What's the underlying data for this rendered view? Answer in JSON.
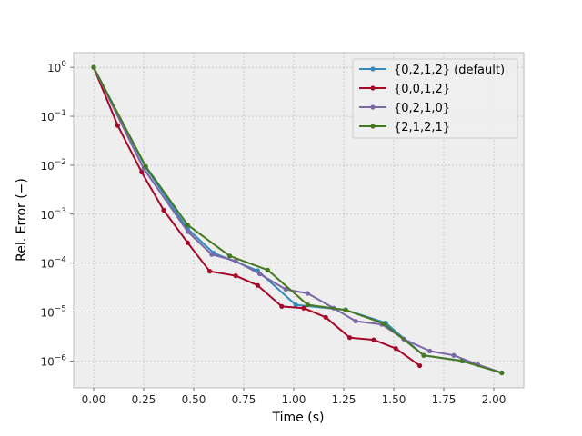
{
  "chart_data": {
    "type": "line",
    "title": "",
    "xlabel": "Time (s)",
    "ylabel": "Rel. Error (−)",
    "xlim": [
      -0.1,
      2.15
    ],
    "ylim_log10": [
      -6.55,
      0.3
    ],
    "y_scale": "log",
    "grid": true,
    "legend_position": "top-right",
    "x_ticks": [
      0.0,
      0.25,
      0.5,
      0.75,
      1.0,
      1.25,
      1.5,
      1.75,
      2.0
    ],
    "x_tick_labels": [
      "0.00",
      "0.25",
      "0.50",
      "0.75",
      "1.00",
      "1.25",
      "1.50",
      "1.75",
      "2.00"
    ],
    "y_ticks": [
      {
        "base": "10",
        "exp": "0",
        "value": 1
      },
      {
        "base": "10",
        "exp": "−1",
        "value": 0.1
      },
      {
        "base": "10",
        "exp": "−2",
        "value": 0.01
      },
      {
        "base": "10",
        "exp": "−3",
        "value": 0.001
      },
      {
        "base": "10",
        "exp": "−4",
        "value": 0.0001
      },
      {
        "base": "10",
        "exp": "−5",
        "value": 1e-05
      },
      {
        "base": "10",
        "exp": "−6",
        "value": 1e-06
      }
    ],
    "series": [
      {
        "name": "{0,2,1,2} (default)",
        "color": "#348abd",
        "points": [
          [
            0.0,
            1.0
          ],
          [
            0.26,
            0.009
          ],
          [
            0.47,
            0.0005
          ],
          [
            0.6,
            0.00016
          ],
          [
            0.82,
            7e-05
          ],
          [
            1.01,
            1.4e-05
          ],
          [
            1.26,
            1.1e-05
          ],
          [
            1.46,
            6e-06
          ],
          [
            1.65,
            1.3e-06
          ],
          [
            1.85,
            1e-06
          ],
          [
            1.92,
            8.4e-07
          ],
          [
            2.04,
            5.7e-07
          ]
        ]
      },
      {
        "name": "{0,0,1,2}",
        "color": "#a60628",
        "points": [
          [
            0.0,
            1.0
          ],
          [
            0.12,
            0.065
          ],
          [
            0.24,
            0.0072
          ],
          [
            0.35,
            0.0012
          ],
          [
            0.47,
            0.00026
          ],
          [
            0.58,
            6.8e-05
          ],
          [
            0.71,
            5.5e-05
          ],
          [
            0.82,
            3.5e-05
          ],
          [
            0.94,
            1.3e-05
          ],
          [
            1.05,
            1.2e-05
          ],
          [
            1.16,
            7.8e-06
          ],
          [
            1.28,
            3e-06
          ],
          [
            1.4,
            2.7e-06
          ],
          [
            1.51,
            1.8e-06
          ],
          [
            1.63,
            8e-07
          ]
        ]
      },
      {
        "name": "{0,2,1,0}",
        "color": "#7a68a6",
        "points": [
          [
            0.0,
            1.0
          ],
          [
            0.25,
            0.0085
          ],
          [
            0.47,
            0.00044
          ],
          [
            0.59,
            0.00015
          ],
          [
            0.71,
            0.00011
          ],
          [
            0.83,
            6e-05
          ],
          [
            0.96,
            2.9e-05
          ],
          [
            1.07,
            2.4e-05
          ],
          [
            1.2,
            1.2e-05
          ],
          [
            1.31,
            6.5e-06
          ],
          [
            1.44,
            5.6e-06
          ],
          [
            1.55,
            2.8e-06
          ],
          [
            1.68,
            1.6e-06
          ],
          [
            1.8,
            1.3e-06
          ],
          [
            1.92,
            8.4e-07
          ],
          [
            2.04,
            5.7e-07
          ]
        ]
      },
      {
        "name": "{2,1,2,1}",
        "color": "#467821",
        "points": [
          [
            0.0,
            1.0
          ],
          [
            0.26,
            0.0095
          ],
          [
            0.47,
            0.0006
          ],
          [
            0.68,
            0.00014
          ],
          [
            0.87,
            7.2e-05
          ],
          [
            1.07,
            1.4e-05
          ],
          [
            1.26,
            1.1e-05
          ],
          [
            1.45,
            5.8e-06
          ],
          [
            1.65,
            1.3e-06
          ],
          [
            1.84,
            1e-06
          ],
          [
            2.04,
            5.7e-07
          ]
        ]
      }
    ]
  }
}
